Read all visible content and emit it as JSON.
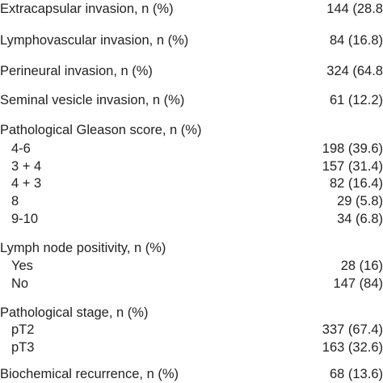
{
  "rows": [
    {
      "label": "Extracapsular invasion, n (%)",
      "value": "144 (28.8"
    },
    {
      "label": "Lymphovascular invasion, n (%)",
      "value": "84 (16.8)"
    },
    {
      "label": "Perineural invasion, n (%)",
      "value": "324 (64.8"
    },
    {
      "label": "Seminal vesicle invasion, n (%)",
      "value": "61 (12.2)"
    },
    {
      "label": "Pathological Gleason score, n (%)",
      "value": ""
    },
    {
      "label": "4-6",
      "value": "198 (39.6)"
    },
    {
      "label": "3 + 4",
      "value": "157 (31.4)"
    },
    {
      "label": "4 + 3",
      "value": "82 (16.4)"
    },
    {
      "label": "8",
      "value": "29 (5.8)"
    },
    {
      "label": "9-10",
      "value": "34 (6.8)"
    },
    {
      "label": "Lymph node positivity, n (%)",
      "value": ""
    },
    {
      "label": "Yes",
      "value": "28 (16)"
    },
    {
      "label": "No",
      "value": "147 (84)"
    },
    {
      "label": "Pathological stage, n (%)",
      "value": ""
    },
    {
      "label": "pT2",
      "value": "337 (67.4)"
    },
    {
      "label": "pT3",
      "value": "163 (32.6)"
    },
    {
      "label": "Biochemical recurrence, n (%)",
      "value": "68 (13.6)"
    }
  ]
}
